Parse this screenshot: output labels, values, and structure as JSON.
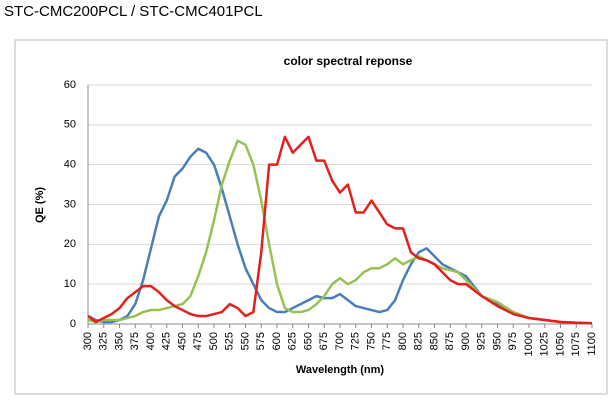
{
  "page_title": "STC-CMC200PCL / STC-CMC401PCL",
  "chart_data": {
    "type": "line",
    "title": "color spectral reponse",
    "x_label": "Wavelength (nm)",
    "y_label": "QE (%)",
    "x": [
      300,
      312.5,
      325,
      337.5,
      350,
      362.5,
      375,
      387.5,
      400,
      412.5,
      425,
      437.5,
      450,
      462.5,
      475,
      487.5,
      500,
      512.5,
      525,
      537.5,
      550,
      562.5,
      575,
      587.5,
      600,
      612.5,
      625,
      637.5,
      650,
      662.5,
      675,
      687.5,
      700,
      712.5,
      725,
      737.5,
      750,
      762.5,
      775,
      787.5,
      800,
      812.5,
      825,
      837.5,
      850,
      862.5,
      875,
      887.5,
      900,
      925,
      950,
      975,
      1000,
      1025,
      1050,
      1075,
      1100
    ],
    "series": [
      {
        "color": "#4a7ebb",
        "values": [
          2,
          1,
          0.5,
          0.5,
          1,
          2,
          5,
          11,
          19,
          27,
          31,
          37,
          39,
          42,
          44,
          43,
          40,
          34,
          27,
          20,
          14,
          10,
          6,
          4,
          3,
          3,
          4,
          5,
          6,
          7,
          6.5,
          6.5,
          7.5,
          6,
          4.5,
          4,
          3.5,
          3,
          3.5,
          6,
          11,
          15,
          18,
          19,
          17,
          15,
          14,
          13,
          12,
          7,
          5,
          3,
          1.5,
          1,
          0.5,
          0.3,
          0.2
        ]
      },
      {
        "color": "#98c154",
        "values": [
          1,
          0.5,
          1,
          1,
          1,
          1.5,
          2,
          3,
          3.5,
          3.5,
          4,
          4.5,
          5,
          7,
          12,
          18,
          26,
          35,
          41,
          46,
          45,
          40,
          31,
          20,
          10,
          4,
          3,
          3,
          3.5,
          5,
          7,
          10,
          11.5,
          10,
          11,
          13,
          14,
          14,
          15,
          16.5,
          15,
          16,
          17,
          16,
          15,
          14,
          13.5,
          13,
          11,
          7,
          5.5,
          3,
          1.5,
          1,
          0.5,
          0.3,
          0.2
        ]
      },
      {
        "color": "#e3201b",
        "values": [
          2,
          0.5,
          1.5,
          2.5,
          4,
          6.5,
          8,
          9.5,
          9.5,
          8,
          6,
          4.5,
          3.5,
          2.5,
          2,
          2,
          2.5,
          3,
          5,
          4,
          2,
          3,
          18,
          40,
          40,
          47,
          43,
          45,
          47,
          41,
          41,
          36,
          33,
          35,
          28,
          28,
          31,
          28,
          25,
          24,
          24,
          18,
          16.5,
          16,
          15,
          13,
          11,
          10,
          10,
          7,
          4.5,
          2.5,
          1.5,
          1,
          0.5,
          0.3,
          0.2
        ]
      }
    ],
    "xlim": [
      300,
      1100
    ],
    "ylim": [
      0,
      60
    ],
    "xticks": [
      300,
      325,
      350,
      375,
      400,
      425,
      450,
      475,
      500,
      525,
      550,
      575,
      600,
      625,
      650,
      675,
      700,
      725,
      750,
      775,
      800,
      825,
      850,
      875,
      900,
      925,
      950,
      975,
      1000,
      1025,
      1050,
      1075,
      1100
    ],
    "yticks": [
      0,
      10,
      20,
      30,
      40,
      50,
      60
    ],
    "grid": true
  }
}
